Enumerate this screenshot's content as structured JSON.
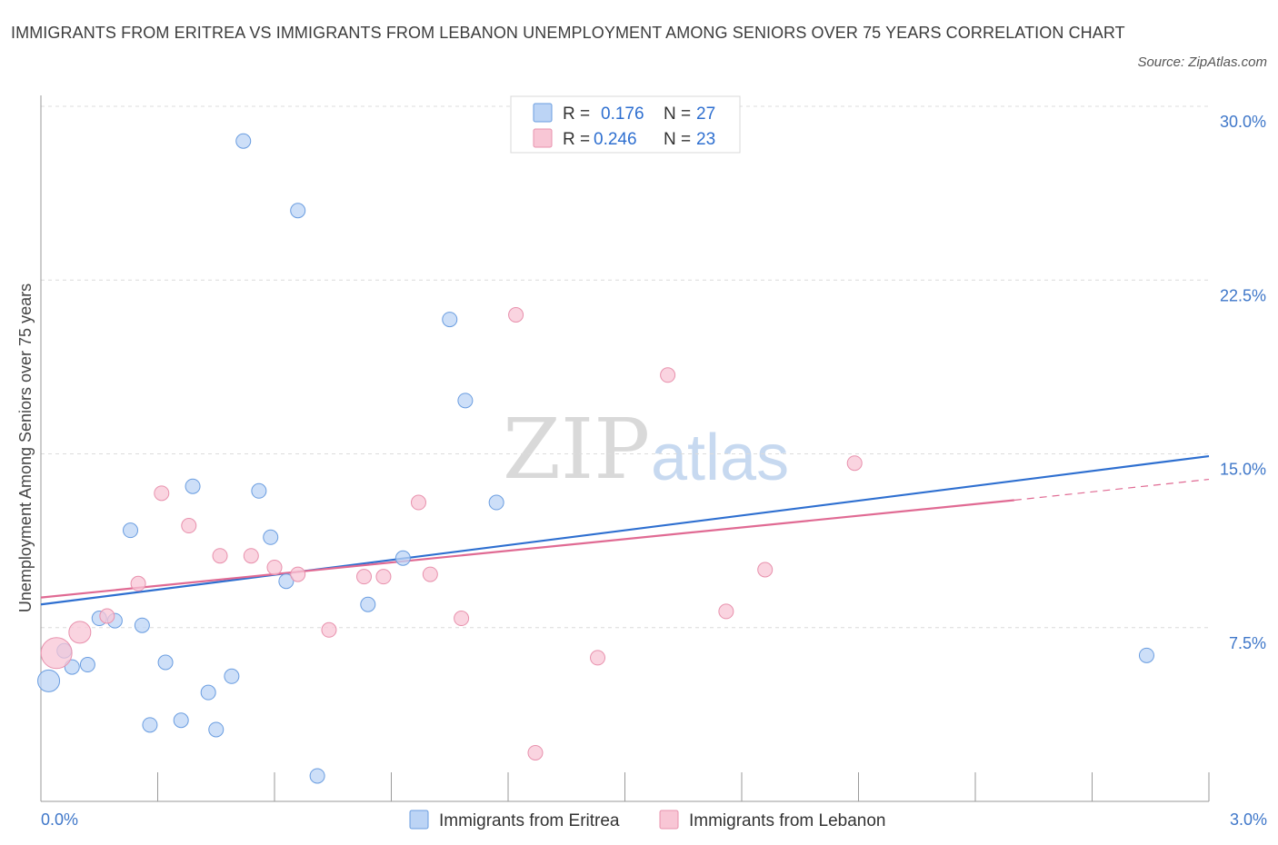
{
  "title": "IMMIGRANTS FROM ERITREA VS IMMIGRANTS FROM LEBANON UNEMPLOYMENT AMONG SENIORS OVER 75 YEARS CORRELATION CHART",
  "source": "Source: ZipAtlas.com",
  "watermark": {
    "zip": "ZIP",
    "atlas": "atlas"
  },
  "colors": {
    "eritrea_fill": "#bcd4f5",
    "eritrea_stroke": "#6a9de0",
    "eritrea_line": "#2e6fd0",
    "lebanon_fill": "#f8c6d5",
    "lebanon_stroke": "#e891ad",
    "lebanon_line": "#e06a93",
    "grid": "#dcdcdc",
    "axis_text": "#3f77c9"
  },
  "legend": {
    "rows": [
      {
        "r_label": "R = ",
        "r_value": "0.176",
        "n_label": "N = ",
        "n_value": "27"
      },
      {
        "r_label": "R = ",
        "r_value": "0.246",
        "n_label": "N = ",
        "n_value": "23"
      }
    ]
  },
  "chart_data": {
    "type": "scatter",
    "title": "IMMIGRANTS FROM ERITREA VS IMMIGRANTS FROM LEBANON UNEMPLOYMENT AMONG SENIORS OVER 75 YEARS CORRELATION CHART",
    "xlabel": "",
    "ylabel": "Unemployment Among Seniors over 75 years",
    "xlim": [
      0,
      3.0
    ],
    "ylim": [
      0,
      30.0
    ],
    "x_tick_labels": [
      "0.0%",
      "3.0%"
    ],
    "y_ticks": [
      7.5,
      15.0,
      22.5,
      30.0
    ],
    "y_tick_labels": [
      "7.5%",
      "15.0%",
      "22.5%",
      "30.0%"
    ],
    "grid": true,
    "legend_position": "top-center",
    "series": [
      {
        "name": "Immigrants from Eritrea",
        "R": 0.176,
        "N": 27,
        "trend": {
          "x": [
            0.0,
            3.0
          ],
          "y": [
            8.5,
            14.9
          ]
        },
        "points": [
          {
            "x": 0.02,
            "y": 5.2,
            "s": 2
          },
          {
            "x": 0.06,
            "y": 6.5,
            "s": 1
          },
          {
            "x": 0.08,
            "y": 5.8,
            "s": 1
          },
          {
            "x": 0.12,
            "y": 5.9,
            "s": 1
          },
          {
            "x": 0.15,
            "y": 7.9,
            "s": 1
          },
          {
            "x": 0.19,
            "y": 7.8,
            "s": 1
          },
          {
            "x": 0.23,
            "y": 11.7,
            "s": 1
          },
          {
            "x": 0.26,
            "y": 7.6,
            "s": 1
          },
          {
            "x": 0.28,
            "y": 3.3,
            "s": 1
          },
          {
            "x": 0.32,
            "y": 6.0,
            "s": 1
          },
          {
            "x": 0.36,
            "y": 3.5,
            "s": 1
          },
          {
            "x": 0.39,
            "y": 13.6,
            "s": 1
          },
          {
            "x": 0.43,
            "y": 4.7,
            "s": 1
          },
          {
            "x": 0.45,
            "y": 3.1,
            "s": 1
          },
          {
            "x": 0.49,
            "y": 5.4,
            "s": 1
          },
          {
            "x": 0.52,
            "y": 28.5,
            "s": 1
          },
          {
            "x": 0.56,
            "y": 13.4,
            "s": 1
          },
          {
            "x": 0.59,
            "y": 11.4,
            "s": 1
          },
          {
            "x": 0.63,
            "y": 9.5,
            "s": 1
          },
          {
            "x": 0.66,
            "y": 25.5,
            "s": 1
          },
          {
            "x": 0.71,
            "y": 1.1,
            "s": 1
          },
          {
            "x": 0.84,
            "y": 8.5,
            "s": 1
          },
          {
            "x": 0.93,
            "y": 10.5,
            "s": 1
          },
          {
            "x": 1.05,
            "y": 20.8,
            "s": 1
          },
          {
            "x": 1.09,
            "y": 17.3,
            "s": 1
          },
          {
            "x": 1.17,
            "y": 12.9,
            "s": 1
          },
          {
            "x": 2.84,
            "y": 6.3,
            "s": 1
          }
        ]
      },
      {
        "name": "Immigrants from Lebanon",
        "R": 0.246,
        "N": 23,
        "trend": {
          "x": [
            0.0,
            2.5
          ],
          "y": [
            8.8,
            13.0
          ]
        },
        "trend_dashed": {
          "x": [
            2.5,
            3.0
          ],
          "y": [
            13.0,
            13.9
          ]
        },
        "points": [
          {
            "x": 0.04,
            "y": 6.4,
            "s": 3
          },
          {
            "x": 0.1,
            "y": 7.3,
            "s": 2
          },
          {
            "x": 0.17,
            "y": 8.0,
            "s": 1
          },
          {
            "x": 0.25,
            "y": 9.4,
            "s": 1
          },
          {
            "x": 0.31,
            "y": 13.3,
            "s": 1
          },
          {
            "x": 0.38,
            "y": 11.9,
            "s": 1
          },
          {
            "x": 0.46,
            "y": 10.6,
            "s": 1
          },
          {
            "x": 0.54,
            "y": 10.6,
            "s": 1
          },
          {
            "x": 0.6,
            "y": 10.1,
            "s": 1
          },
          {
            "x": 0.66,
            "y": 9.8,
            "s": 1
          },
          {
            "x": 0.74,
            "y": 7.4,
            "s": 1
          },
          {
            "x": 0.83,
            "y": 9.7,
            "s": 1
          },
          {
            "x": 0.88,
            "y": 9.7,
            "s": 1
          },
          {
            "x": 0.97,
            "y": 12.9,
            "s": 1
          },
          {
            "x": 1.0,
            "y": 9.8,
            "s": 1
          },
          {
            "x": 1.08,
            "y": 7.9,
            "s": 1
          },
          {
            "x": 1.22,
            "y": 21.0,
            "s": 1
          },
          {
            "x": 1.27,
            "y": 2.1,
            "s": 1
          },
          {
            "x": 1.43,
            "y": 6.2,
            "s": 1
          },
          {
            "x": 1.61,
            "y": 18.4,
            "s": 1
          },
          {
            "x": 1.76,
            "y": 8.2,
            "s": 1
          },
          {
            "x": 1.86,
            "y": 10.0,
            "s": 1
          },
          {
            "x": 2.09,
            "y": 14.6,
            "s": 1
          }
        ]
      }
    ]
  }
}
